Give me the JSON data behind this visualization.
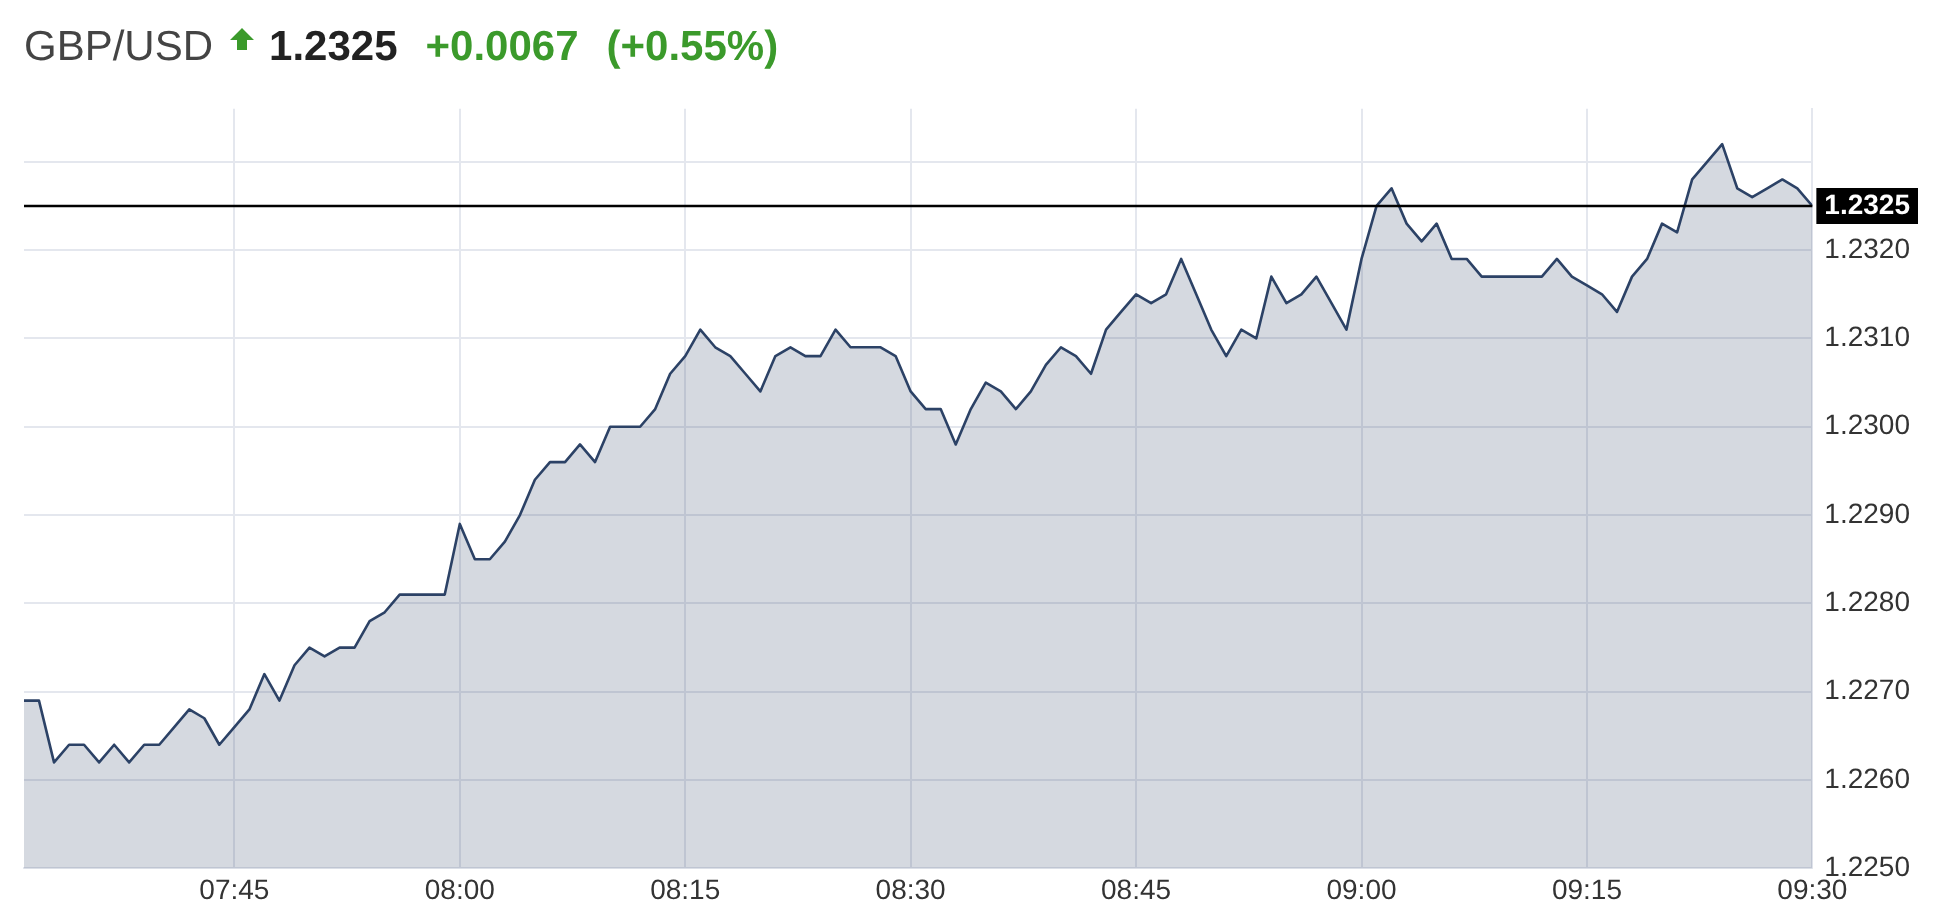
{
  "chart_data": {
    "type": "area",
    "title": "GBP/USD",
    "subtitle": "1.2325",
    "annotations": [
      "+0.0067",
      "(+0.55%)"
    ],
    "x": [
      7.5167,
      7.5333,
      7.55,
      7.5667,
      7.5833,
      7.6,
      7.6167,
      7.6333,
      7.65,
      7.6667,
      7.6833,
      7.7,
      7.7167,
      7.7333,
      7.75,
      7.7667,
      7.7833,
      7.8,
      7.8167,
      7.8333,
      7.85,
      7.8667,
      7.8833,
      7.9,
      7.9167,
      7.9333,
      7.95,
      7.9667,
      7.9833,
      8,
      8.0167,
      8.0333,
      8.05,
      8.0667,
      8.0833,
      8.1,
      8.1167,
      8.1333,
      8.15,
      8.1667,
      8.1833,
      8.2,
      8.2167,
      8.2333,
      8.25,
      8.2667,
      8.2833,
      8.3,
      8.3167,
      8.3333,
      8.35,
      8.3667,
      8.3833,
      8.4,
      8.4167,
      8.4333,
      8.45,
      8.4667,
      8.4833,
      8.5,
      8.5167,
      8.5333,
      8.55,
      8.5667,
      8.5833,
      8.6,
      8.6167,
      8.6333,
      8.65,
      8.6667,
      8.6833,
      8.7,
      8.7167,
      8.7333,
      8.75,
      8.7667,
      8.7833,
      8.8,
      8.8167,
      8.8333,
      8.85,
      8.8667,
      8.8833,
      8.9,
      8.9167,
      8.9333,
      8.95,
      8.9667,
      8.9833,
      9,
      9.0167,
      9.0333,
      9.05,
      9.0667,
      9.0833,
      9.1,
      9.1167,
      9.1333,
      9.15,
      9.1667,
      9.1833,
      9.2,
      9.2167,
      9.2333,
      9.25,
      9.2667,
      9.2833,
      9.3,
      9.3167,
      9.3333,
      9.35,
      9.3667,
      9.3833,
      9.4,
      9.4167,
      9.4333,
      9.45,
      9.4667,
      9.4833,
      9.5
    ],
    "series": [
      {
        "color": "#2c4266",
        "values": [
          1.2269,
          1.2269,
          1.2262,
          1.2264,
          1.2264,
          1.2262,
          1.2264,
          1.2262,
          1.2264,
          1.2264,
          1.2266,
          1.2268,
          1.2267,
          1.2264,
          1.2266,
          1.2268,
          1.2272,
          1.2269,
          1.2273,
          1.2275,
          1.2274,
          1.2275,
          1.2275,
          1.2278,
          1.2279,
          1.2281,
          1.2281,
          1.2281,
          1.2281,
          1.2289,
          1.2285,
          1.2285,
          1.2287,
          1.229,
          1.2294,
          1.2296,
          1.2296,
          1.2298,
          1.2296,
          1.23,
          1.23,
          1.23,
          1.2302,
          1.2306,
          1.2308,
          1.2311,
          1.2309,
          1.2308,
          1.2306,
          1.2304,
          1.2308,
          1.2309,
          1.2308,
          1.2308,
          1.2311,
          1.2309,
          1.2309,
          1.2309,
          1.2308,
          1.2304,
          1.2302,
          1.2302,
          1.2298,
          1.2302,
          1.2305,
          1.2304,
          1.2302,
          1.2304,
          1.2307,
          1.2309,
          1.2308,
          1.2306,
          1.2311,
          1.2313,
          1.2315,
          1.2314,
          1.2315,
          1.2319,
          1.2315,
          1.2311,
          1.2308,
          1.2311,
          1.231,
          1.2317,
          1.2314,
          1.2315,
          1.2317,
          1.2314,
          1.2311,
          1.2319,
          1.2325,
          1.2327,
          1.2323,
          1.2321,
          1.2323,
          1.2319,
          1.2319,
          1.2317,
          1.2317,
          1.2317,
          1.2317,
          1.2317,
          1.2319,
          1.2317,
          1.2316,
          1.2315,
          1.2313,
          1.2317,
          1.2319,
          1.2323,
          1.2322,
          1.2328,
          1.233,
          1.2332,
          1.2327,
          1.2326,
          1.2327,
          1.2328,
          1.2327,
          1.2325
        ]
      }
    ],
    "xlim": [
      7.5167,
      9.5
    ],
    "xticks": [
      {
        "value": 7.75,
        "label": "07:45"
      },
      {
        "value": 8,
        "label": "08:00"
      },
      {
        "value": 8.25,
        "label": "08:15"
      },
      {
        "value": 8.5,
        "label": "08:30"
      },
      {
        "value": 8.75,
        "label": "08:45"
      },
      {
        "value": 9,
        "label": "09:00"
      },
      {
        "value": 9.25,
        "label": "09:15"
      },
      {
        "value": 9.5,
        "label": "09:30"
      }
    ],
    "ylim": [
      1.225,
      1.2336
    ],
    "yticks": [
      {
        "value": 1.225,
        "label": "1.2250"
      },
      {
        "value": 1.226,
        "label": "1.2260"
      },
      {
        "value": 1.227,
        "label": "1.2270"
      },
      {
        "value": 1.228,
        "label": "1.2280"
      },
      {
        "value": 1.229,
        "label": "1.2290"
      },
      {
        "value": 1.23,
        "label": "1.2300"
      },
      {
        "value": 1.231,
        "label": "1.2310"
      },
      {
        "value": 1.232,
        "label": "1.2320"
      },
      {
        "value": 1.233,
        "label": null
      }
    ],
    "ref_lines": [
      {
        "axis": "y",
        "value": 1.2325,
        "label": "1.2325",
        "color": "#000000"
      }
    ],
    "grid": true,
    "legend": false,
    "marker": "none",
    "line_style": "solid"
  }
}
